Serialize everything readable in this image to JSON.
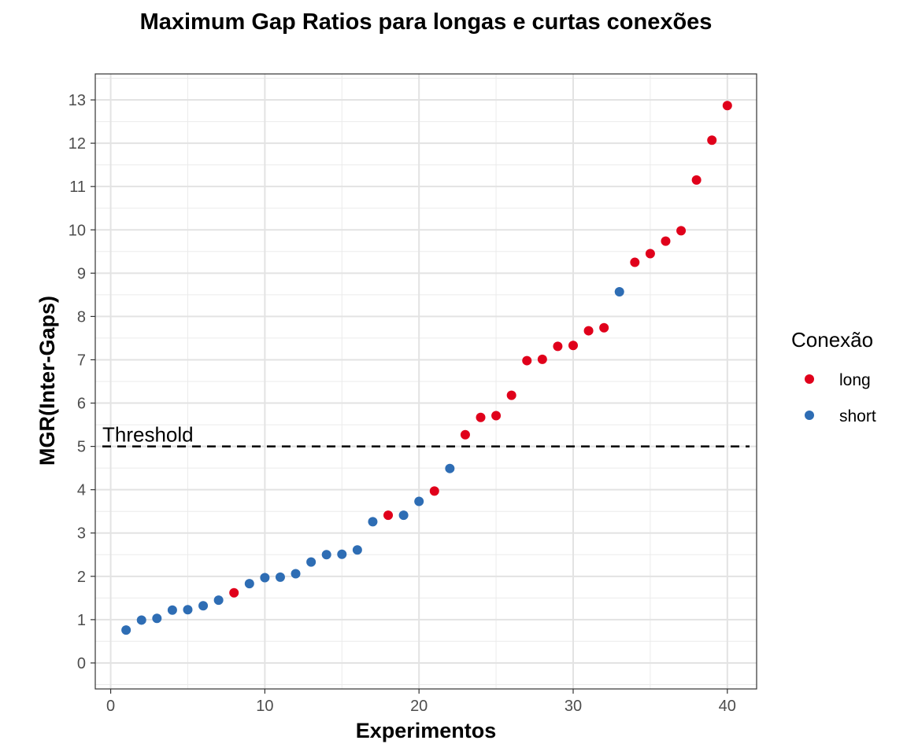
{
  "chart_data": {
    "type": "scatter",
    "title": "Maximum Gap Ratios para longas e curtas conexões",
    "xlabel": "Experimentos",
    "ylabel": "MGR(Inter-Gaps)",
    "xlim": [
      -1,
      41.9
    ],
    "ylim": [
      -0.6,
      13.6
    ],
    "x_ticks": [
      0,
      10,
      20,
      30,
      40
    ],
    "y_ticks": [
      0,
      1,
      2,
      3,
      4,
      5,
      6,
      7,
      8,
      9,
      10,
      11,
      12,
      13
    ],
    "grid": true,
    "legend": {
      "title": "Conexão",
      "position": "right"
    },
    "threshold": {
      "y": 5,
      "label": "Threshold",
      "style": "dashed"
    },
    "series": [
      {
        "name": "long",
        "color": "#e0001b",
        "points": [
          {
            "x": 8,
            "y": 1.62
          },
          {
            "x": 18,
            "y": 3.41
          },
          {
            "x": 21,
            "y": 3.97
          },
          {
            "x": 23,
            "y": 5.27
          },
          {
            "x": 24,
            "y": 5.67
          },
          {
            "x": 25,
            "y": 5.71
          },
          {
            "x": 26,
            "y": 6.18
          },
          {
            "x": 27,
            "y": 6.98
          },
          {
            "x": 28,
            "y": 7.01
          },
          {
            "x": 29,
            "y": 7.31
          },
          {
            "x": 30,
            "y": 7.33
          },
          {
            "x": 31,
            "y": 7.67
          },
          {
            "x": 32,
            "y": 7.74
          },
          {
            "x": 34,
            "y": 9.25
          },
          {
            "x": 35,
            "y": 9.45
          },
          {
            "x": 36,
            "y": 9.74
          },
          {
            "x": 37,
            "y": 9.98
          },
          {
            "x": 38,
            "y": 11.15
          },
          {
            "x": 39,
            "y": 12.07
          },
          {
            "x": 40,
            "y": 12.87
          }
        ]
      },
      {
        "name": "short",
        "color": "#2e6db4",
        "points": [
          {
            "x": 1,
            "y": 0.76
          },
          {
            "x": 2,
            "y": 0.99
          },
          {
            "x": 3,
            "y": 1.03
          },
          {
            "x": 4,
            "y": 1.22
          },
          {
            "x": 5,
            "y": 1.23
          },
          {
            "x": 6,
            "y": 1.32
          },
          {
            "x": 7,
            "y": 1.45
          },
          {
            "x": 9,
            "y": 1.83
          },
          {
            "x": 10,
            "y": 1.97
          },
          {
            "x": 11,
            "y": 1.98
          },
          {
            "x": 12,
            "y": 2.06
          },
          {
            "x": 13,
            "y": 2.33
          },
          {
            "x": 14,
            "y": 2.5
          },
          {
            "x": 15,
            "y": 2.51
          },
          {
            "x": 16,
            "y": 2.61
          },
          {
            "x": 17,
            "y": 3.26
          },
          {
            "x": 19,
            "y": 3.41
          },
          {
            "x": 20,
            "y": 3.73
          },
          {
            "x": 22,
            "y": 4.49
          },
          {
            "x": 33,
            "y": 8.57
          }
        ]
      }
    ]
  }
}
